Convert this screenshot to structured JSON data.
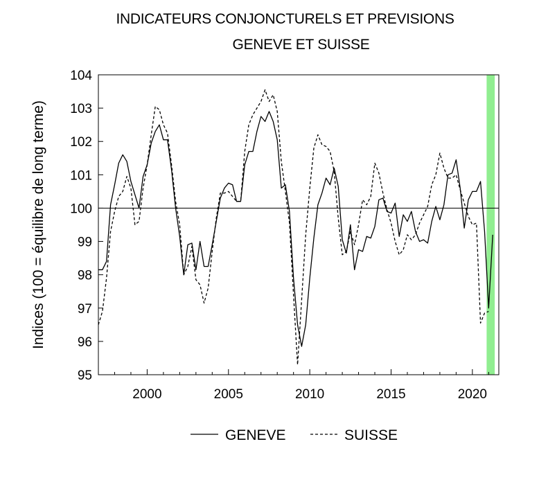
{
  "chart_data": {
    "type": "line",
    "title": "INDICATEURS CONJONCTURELS ET PREVISIONS",
    "subtitle": "GENEVE ET SUISSE",
    "ylabel": "Indices (100 = équilibre de long terme)",
    "xlabel": "",
    "xlim": [
      1997.0,
      2021.625
    ],
    "ylim": [
      95,
      104
    ],
    "yticks": [
      95,
      96,
      97,
      98,
      99,
      100,
      101,
      102,
      103,
      104
    ],
    "xticks": [
      2000,
      2005,
      2010,
      2015,
      2020
    ],
    "reference_line": 100,
    "shaded_region": {
      "from": 2020.875,
      "to": 2021.375,
      "color": "#90ee90"
    },
    "legend": {
      "placement": "bottom-center"
    },
    "series": [
      {
        "name": "GENEVE",
        "style": "solid",
        "points": [
          [
            1997.0,
            98.15
          ],
          [
            1997.25,
            98.15
          ],
          [
            1997.5,
            98.4
          ],
          [
            1997.75,
            100.1
          ],
          [
            1998.0,
            100.7
          ],
          [
            1998.25,
            101.35
          ],
          [
            1998.5,
            101.6
          ],
          [
            1998.75,
            101.4
          ],
          [
            1999.0,
            100.8
          ],
          [
            1999.25,
            100.4
          ],
          [
            1999.5,
            100.0
          ],
          [
            1999.75,
            100.95
          ],
          [
            2000.0,
            101.3
          ],
          [
            2000.25,
            101.95
          ],
          [
            2000.5,
            102.3
          ],
          [
            2000.75,
            102.5
          ],
          [
            2001.0,
            102.05
          ],
          [
            2001.25,
            102.05
          ],
          [
            2001.5,
            101.15
          ],
          [
            2001.75,
            100.0
          ],
          [
            2002.0,
            99.15
          ],
          [
            2002.25,
            98.0
          ],
          [
            2002.5,
            98.9
          ],
          [
            2002.75,
            98.95
          ],
          [
            2003.0,
            98.15
          ],
          [
            2003.25,
            99.0
          ],
          [
            2003.5,
            98.25
          ],
          [
            2003.75,
            98.25
          ],
          [
            2004.0,
            98.9
          ],
          [
            2004.25,
            99.6
          ],
          [
            2004.5,
            100.3
          ],
          [
            2004.75,
            100.6
          ],
          [
            2005.0,
            100.75
          ],
          [
            2005.25,
            100.7
          ],
          [
            2005.5,
            100.2
          ],
          [
            2005.75,
            100.2
          ],
          [
            2006.0,
            101.3
          ],
          [
            2006.25,
            101.7
          ],
          [
            2006.5,
            101.7
          ],
          [
            2006.75,
            102.3
          ],
          [
            2007.0,
            102.75
          ],
          [
            2007.25,
            102.6
          ],
          [
            2007.5,
            102.9
          ],
          [
            2007.75,
            102.6
          ],
          [
            2008.0,
            102.05
          ],
          [
            2008.25,
            100.6
          ],
          [
            2008.5,
            100.7
          ],
          [
            2008.75,
            99.9
          ],
          [
            2009.0,
            97.9
          ],
          [
            2009.25,
            96.5
          ],
          [
            2009.5,
            95.85
          ],
          [
            2009.75,
            96.5
          ],
          [
            2010.0,
            97.9
          ],
          [
            2010.25,
            99.1
          ],
          [
            2010.5,
            100.1
          ],
          [
            2010.75,
            100.45
          ],
          [
            2011.0,
            100.9
          ],
          [
            2011.25,
            100.7
          ],
          [
            2011.5,
            101.2
          ],
          [
            2011.75,
            100.65
          ],
          [
            2012.0,
            99.05
          ],
          [
            2012.25,
            98.65
          ],
          [
            2012.5,
            99.5
          ],
          [
            2012.75,
            98.15
          ],
          [
            2013.0,
            98.75
          ],
          [
            2013.25,
            98.7
          ],
          [
            2013.5,
            99.15
          ],
          [
            2013.75,
            99.1
          ],
          [
            2014.0,
            99.45
          ],
          [
            2014.25,
            100.25
          ],
          [
            2014.5,
            100.3
          ],
          [
            2014.75,
            99.9
          ],
          [
            2015.0,
            99.85
          ],
          [
            2015.25,
            100.15
          ],
          [
            2015.5,
            99.15
          ],
          [
            2015.75,
            99.8
          ],
          [
            2016.0,
            99.6
          ],
          [
            2016.25,
            99.9
          ],
          [
            2016.5,
            99.3
          ],
          [
            2016.75,
            99.0
          ],
          [
            2017.0,
            99.05
          ],
          [
            2017.25,
            98.95
          ],
          [
            2017.5,
            99.6
          ],
          [
            2017.75,
            100.05
          ],
          [
            2018.0,
            99.65
          ],
          [
            2018.25,
            100.1
          ],
          [
            2018.5,
            101.0
          ],
          [
            2018.75,
            101.05
          ],
          [
            2019.0,
            101.45
          ],
          [
            2019.25,
            100.6
          ],
          [
            2019.5,
            99.4
          ],
          [
            2019.75,
            100.25
          ],
          [
            2020.0,
            100.5
          ],
          [
            2020.25,
            100.5
          ],
          [
            2020.5,
            100.8
          ],
          [
            2020.75,
            99.3
          ],
          [
            2021.0,
            97.0
          ],
          [
            2021.25,
            99.2
          ]
        ]
      },
      {
        "name": "SUISSE",
        "style": "dashed",
        "points": [
          [
            1997.0,
            96.5
          ],
          [
            1997.25,
            96.9
          ],
          [
            1997.5,
            97.9
          ],
          [
            1997.75,
            99.3
          ],
          [
            1998.0,
            99.9
          ],
          [
            1998.25,
            100.35
          ],
          [
            1998.5,
            100.5
          ],
          [
            1998.75,
            100.95
          ],
          [
            1999.0,
            100.6
          ],
          [
            1999.25,
            99.5
          ],
          [
            1999.5,
            99.6
          ],
          [
            1999.75,
            100.6
          ],
          [
            2000.0,
            101.3
          ],
          [
            2000.25,
            102.2
          ],
          [
            2000.5,
            103.05
          ],
          [
            2000.75,
            102.95
          ],
          [
            2001.0,
            102.5
          ],
          [
            2001.25,
            102.25
          ],
          [
            2001.5,
            101.3
          ],
          [
            2001.75,
            100.2
          ],
          [
            2002.0,
            99.5
          ],
          [
            2002.25,
            98.0
          ],
          [
            2002.5,
            98.25
          ],
          [
            2002.75,
            98.85
          ],
          [
            2003.0,
            97.85
          ],
          [
            2003.25,
            97.7
          ],
          [
            2003.5,
            97.15
          ],
          [
            2003.75,
            97.6
          ],
          [
            2004.0,
            98.7
          ],
          [
            2004.25,
            99.7
          ],
          [
            2004.5,
            100.45
          ],
          [
            2004.75,
            100.45
          ],
          [
            2005.0,
            100.5
          ],
          [
            2005.25,
            100.35
          ],
          [
            2005.5,
            100.2
          ],
          [
            2005.75,
            100.2
          ],
          [
            2006.0,
            101.7
          ],
          [
            2006.25,
            102.5
          ],
          [
            2006.5,
            102.8
          ],
          [
            2006.75,
            103.0
          ],
          [
            2007.0,
            103.2
          ],
          [
            2007.25,
            103.55
          ],
          [
            2007.5,
            103.2
          ],
          [
            2007.75,
            103.4
          ],
          [
            2008.0,
            102.9
          ],
          [
            2008.25,
            101.4
          ],
          [
            2008.5,
            100.5
          ],
          [
            2008.75,
            99.55
          ],
          [
            2009.0,
            97.4
          ],
          [
            2009.25,
            95.3
          ],
          [
            2009.5,
            97.25
          ],
          [
            2009.75,
            99.2
          ],
          [
            2010.0,
            100.6
          ],
          [
            2010.25,
            101.8
          ],
          [
            2010.5,
            102.2
          ],
          [
            2010.75,
            101.9
          ],
          [
            2011.0,
            101.85
          ],
          [
            2011.25,
            101.7
          ],
          [
            2011.5,
            101.1
          ],
          [
            2011.75,
            99.7
          ],
          [
            2012.0,
            98.6
          ],
          [
            2012.25,
            98.7
          ],
          [
            2012.5,
            99.3
          ],
          [
            2012.75,
            98.9
          ],
          [
            2013.0,
            99.5
          ],
          [
            2013.25,
            100.25
          ],
          [
            2013.5,
            100.1
          ],
          [
            2013.75,
            100.35
          ],
          [
            2014.0,
            101.35
          ],
          [
            2014.25,
            101.05
          ],
          [
            2014.5,
            100.45
          ],
          [
            2014.75,
            99.95
          ],
          [
            2015.0,
            99.55
          ],
          [
            2015.25,
            99.0
          ],
          [
            2015.5,
            98.6
          ],
          [
            2015.75,
            98.75
          ],
          [
            2016.0,
            99.2
          ],
          [
            2016.25,
            99.05
          ],
          [
            2016.5,
            99.2
          ],
          [
            2016.75,
            99.55
          ],
          [
            2017.0,
            99.8
          ],
          [
            2017.25,
            100.05
          ],
          [
            2017.5,
            100.7
          ],
          [
            2017.75,
            101.0
          ],
          [
            2018.0,
            101.65
          ],
          [
            2018.25,
            101.2
          ],
          [
            2018.5,
            100.9
          ],
          [
            2018.75,
            100.9
          ],
          [
            2019.0,
            101.0
          ],
          [
            2019.25,
            100.55
          ],
          [
            2019.5,
            100.15
          ],
          [
            2019.75,
            99.75
          ],
          [
            2020.0,
            99.5
          ],
          [
            2020.25,
            99.55
          ],
          [
            2020.5,
            96.55
          ],
          [
            2020.75,
            96.85
          ],
          [
            2021.0,
            96.9
          ]
        ]
      }
    ]
  }
}
